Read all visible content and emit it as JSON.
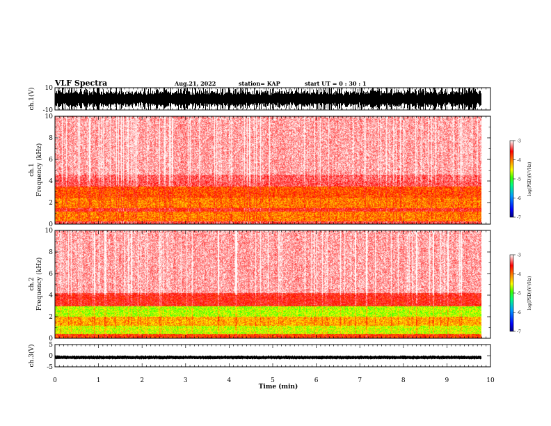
{
  "header": {
    "title": "VLF Spectra",
    "date": "Aug.21, 2022",
    "station": "station= KAP",
    "start": "start  UT =  0 : 30 : 1"
  },
  "colors": {
    "spectrogram_stops": [
      "#000080",
      "#0000ff",
      "#00a0ff",
      "#00ff80",
      "#40ff00",
      "#ffff00",
      "#ff8000",
      "#ff0000",
      "#ff8080",
      "#ffffff"
    ]
  },
  "chart_data": [
    {
      "type": "line",
      "ylabel": "ch.1(V)",
      "ylim": [
        -10,
        10
      ],
      "yticks": [
        "10",
        "-10"
      ],
      "xlim": [
        0,
        10
      ],
      "description_range": [
        -10,
        10
      ]
    },
    {
      "type": "heatmap",
      "ylabel": "Frequency (kHz)",
      "ylabel2": "ch.1",
      "ylim": [
        0,
        10
      ],
      "yticks": [
        "0",
        "2",
        "4",
        "6",
        "8",
        "10"
      ],
      "xlim": [
        0,
        10
      ],
      "colorbar": {
        "label": "log(PSD)(V²/Hz)",
        "ticks": [
          "-3",
          "-4",
          "-5",
          "-6",
          "-7"
        ],
        "range": [
          -7,
          -3
        ]
      }
    },
    {
      "type": "heatmap",
      "ylabel": "Frequency (kHz)",
      "ylabel2": "ch.2",
      "ylim": [
        0,
        10
      ],
      "yticks": [
        "0",
        "2",
        "4",
        "6",
        "8",
        "10"
      ],
      "xlim": [
        0,
        10
      ],
      "colorbar": {
        "label": "log(PSD)(V²/Hz)",
        "ticks": [
          "-3",
          "-4",
          "-5",
          "-6",
          "-7"
        ],
        "range": [
          -7,
          -3
        ]
      }
    },
    {
      "type": "line",
      "ylabel": "ch.3(V)",
      "ylim": [
        -5,
        5
      ],
      "yticks": [
        "5",
        "0",
        "-5"
      ],
      "xlim": [
        0,
        10
      ],
      "xlabel": "Time  (min)",
      "xticks": [
        "0",
        "1",
        "2",
        "3",
        "4",
        "5",
        "6",
        "7",
        "8",
        "9",
        "10"
      ]
    }
  ]
}
